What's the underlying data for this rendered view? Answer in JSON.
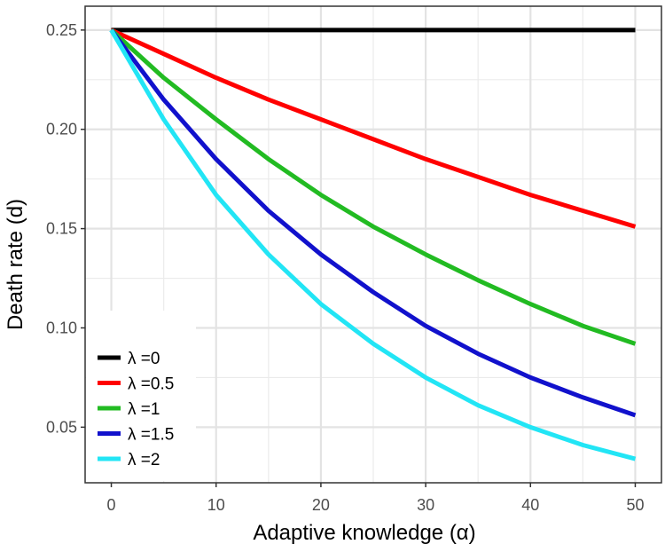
{
  "chart_data": {
    "type": "line",
    "title": "",
    "xlabel": "Adaptive knowledge (α)",
    "ylabel": "Death rate (d)",
    "xlim": [
      -2.5,
      52.5
    ],
    "ylim": [
      0.022,
      0.262
    ],
    "xticks": [
      0,
      10,
      20,
      30,
      40,
      50
    ],
    "xtick_labels": [
      "0",
      "10",
      "20",
      "30",
      "40",
      "50"
    ],
    "yticks": [
      0.05,
      0.1,
      0.15,
      0.2,
      0.25
    ],
    "ytick_labels": [
      "0.05",
      "0.10",
      "0.15",
      "0.20",
      "0.25"
    ],
    "grid": true,
    "legend_position": "bottom-left",
    "x": [
      0,
      5,
      10,
      15,
      20,
      25,
      30,
      35,
      40,
      45,
      50
    ],
    "series": [
      {
        "name": "λ =0",
        "color": "#000000",
        "values": [
          0.25,
          0.25,
          0.25,
          0.25,
          0.25,
          0.25,
          0.25,
          0.25,
          0.25,
          0.25,
          0.25
        ]
      },
      {
        "name": "λ =0.5",
        "color": "#ff0000",
        "values": [
          0.25,
          0.238,
          0.226,
          0.215,
          0.205,
          0.195,
          0.185,
          0.176,
          0.167,
          0.159,
          0.151
        ]
      },
      {
        "name": "λ =1",
        "color": "#22bb22",
        "values": [
          0.25,
          0.226,
          0.205,
          0.185,
          0.167,
          0.151,
          0.137,
          0.124,
          0.112,
          0.101,
          0.092
        ]
      },
      {
        "name": "λ =1.5",
        "color": "#1111cc",
        "values": [
          0.25,
          0.215,
          0.185,
          0.159,
          0.137,
          0.118,
          0.101,
          0.087,
          0.075,
          0.065,
          0.056
        ]
      },
      {
        "name": "λ =2",
        "color": "#22e5f5",
        "values": [
          0.25,
          0.205,
          0.167,
          0.137,
          0.112,
          0.092,
          0.075,
          0.061,
          0.05,
          0.041,
          0.034
        ]
      }
    ]
  }
}
